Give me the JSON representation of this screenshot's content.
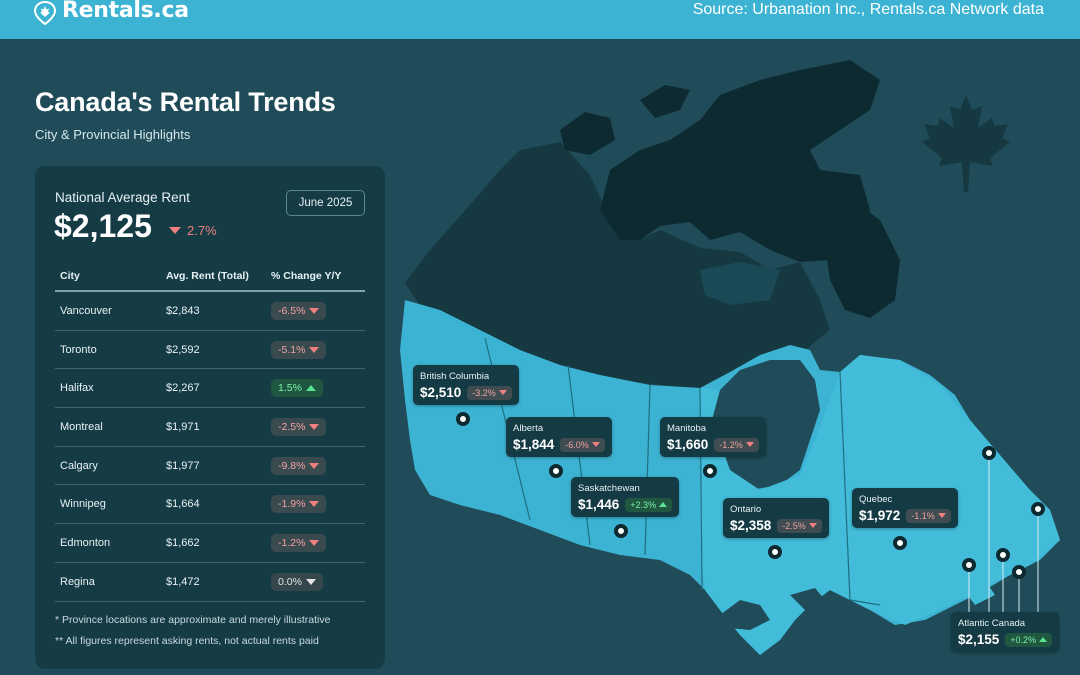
{
  "header": {
    "brand": "Rentals.ca",
    "source": "Source: Urbanation Inc., Rentals.ca Network data"
  },
  "colors": {
    "background": "#1f4c58",
    "accent": "#3cb3d2",
    "panel": "#153b45",
    "negative": "#f08080",
    "positive": "#5be38f"
  },
  "title": "Canada's Rental Trends",
  "subtitle": "City & Provincial Highlights",
  "national": {
    "label": "National Average Rent",
    "value": "$2,125",
    "change": "2.7%",
    "direction": "down",
    "date": "June 2025"
  },
  "table": {
    "headers": [
      "City",
      "Avg. Rent (Total)",
      "% Change Y/Y"
    ],
    "rows": [
      {
        "city": "Vancouver",
        "rent": "$2,843",
        "change": "-6.5%",
        "dir": "down"
      },
      {
        "city": "Toronto",
        "rent": "$2,592",
        "change": "-5.1%",
        "dir": "down"
      },
      {
        "city": "Halifax",
        "rent": "$2,267",
        "change": "1.5%",
        "dir": "up"
      },
      {
        "city": "Montreal",
        "rent": "$1,971",
        "change": "-2.5%",
        "dir": "down"
      },
      {
        "city": "Calgary",
        "rent": "$1,977",
        "change": "-9.8%",
        "dir": "down"
      },
      {
        "city": "Winnipeg",
        "rent": "$1,664",
        "change": "-1.9%",
        "dir": "down"
      },
      {
        "city": "Edmonton",
        "rent": "$1,662",
        "change": "-1.2%",
        "dir": "down"
      },
      {
        "city": "Regina",
        "rent": "$1,472",
        "change": "0.0%",
        "dir": "flat"
      }
    ]
  },
  "notes": [
    "* Province locations are approximate and merely illustrative",
    "** All figures represent asking rents, not actual rents paid"
  ],
  "provinces": [
    {
      "name": "British Columbia",
      "price": "$2,510",
      "change": "-3.2%",
      "dir": "down"
    },
    {
      "name": "Alberta",
      "price": "$1,844",
      "change": "-6.0%",
      "dir": "down"
    },
    {
      "name": "Saskatchewan",
      "price": "$1,446",
      "change": "+2.3%",
      "dir": "up"
    },
    {
      "name": "Manitoba",
      "price": "$1,660",
      "change": "-1.2%",
      "dir": "down"
    },
    {
      "name": "Ontario",
      "price": "$2,358",
      "change": "-2.5%",
      "dir": "down"
    },
    {
      "name": "Quebec",
      "price": "$1,972",
      "change": "-1.1%",
      "dir": "down"
    },
    {
      "name": "Atlantic Canada",
      "price": "$2,155",
      "change": "+0.2%",
      "dir": "up"
    }
  ]
}
